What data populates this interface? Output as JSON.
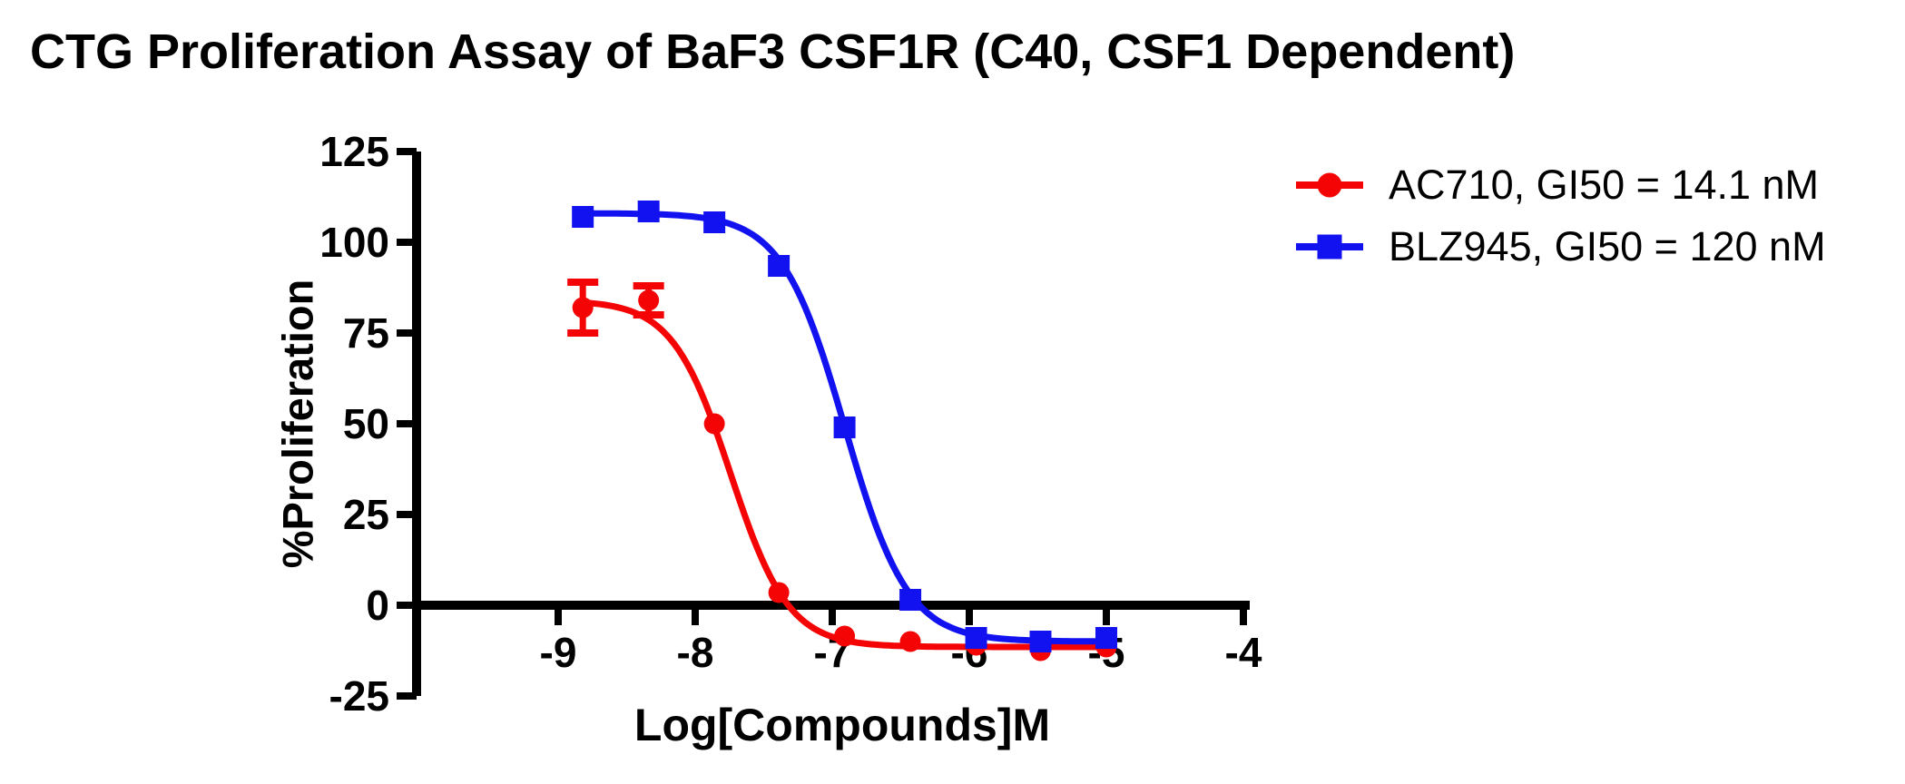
{
  "title": "CTG Proliferation Assay of BaF3 CSF1R (C40, CSF1 Dependent)",
  "colors": {
    "ac710": "#f40404",
    "blz945": "#1212f0",
    "axis": "#000000",
    "background": "#ffffff"
  },
  "legend": {
    "items": [
      {
        "label": "AC710, GI50 = 14.1 nM",
        "marker": "circle",
        "color": "#f40404"
      },
      {
        "label": "BLZ945, GI50 = 120 nM",
        "marker": "square",
        "color": "#1212f0"
      }
    ]
  },
  "chart_data": {
    "type": "line",
    "title": "CTG Proliferation Assay of BaF3 CSF1R (C40, CSF1 Dependent)",
    "xlabel": "Log[Compounds]M",
    "ylabel": "%Proliferation",
    "xlim": [
      -10.03,
      -3.954
    ],
    "ylim": [
      -25,
      125
    ],
    "x_axis_at_y": 0,
    "grid": false,
    "legend_position": "right-top",
    "xticks": [
      -9,
      -8,
      -7,
      -6,
      -5,
      -4
    ],
    "xtick_labels": [
      "-9",
      "-8",
      "-7",
      "-6",
      "-5",
      "-4"
    ],
    "yticks": [
      125,
      100,
      75,
      50,
      25,
      0,
      -25
    ],
    "ytick_labels": [
      "125",
      "100",
      "75",
      "50",
      "25",
      "0",
      "-25"
    ],
    "x": [
      -8.82,
      -8.34,
      -7.86,
      -7.39,
      -6.91,
      -6.43,
      -5.95,
      -5.48,
      -5.0
    ],
    "series": [
      {
        "name": "AC710",
        "legend_label": "AC710, GI50 = 14.1 nM",
        "gi50_nM": 14.1,
        "marker": "circle",
        "color": "#f40404",
        "values": [
          82,
          84,
          50,
          3.5,
          -8.5,
          -10,
          -11,
          -12.5,
          -11.5
        ],
        "yerr": [
          7,
          4,
          0,
          0,
          0,
          0,
          0,
          0,
          0
        ],
        "fit": {
          "top": 84,
          "bottom": -11.5,
          "loggi50": -7.742,
          "hill": 2.05
        }
      },
      {
        "name": "BLZ945",
        "legend_label": "BLZ945, GI50 = 120 nM",
        "gi50_nM": 120,
        "marker": "square",
        "color": "#1212f0",
        "values": [
          107,
          108.5,
          105.5,
          93.5,
          49,
          1.5,
          -9,
          -10,
          -9
        ],
        "yerr": [
          0,
          0,
          0,
          0,
          0,
          0,
          0,
          0,
          0
        ],
        "fit": {
          "top": 108,
          "bottom": -10,
          "loggi50": -6.908,
          "hill": 1.9
        }
      }
    ]
  }
}
